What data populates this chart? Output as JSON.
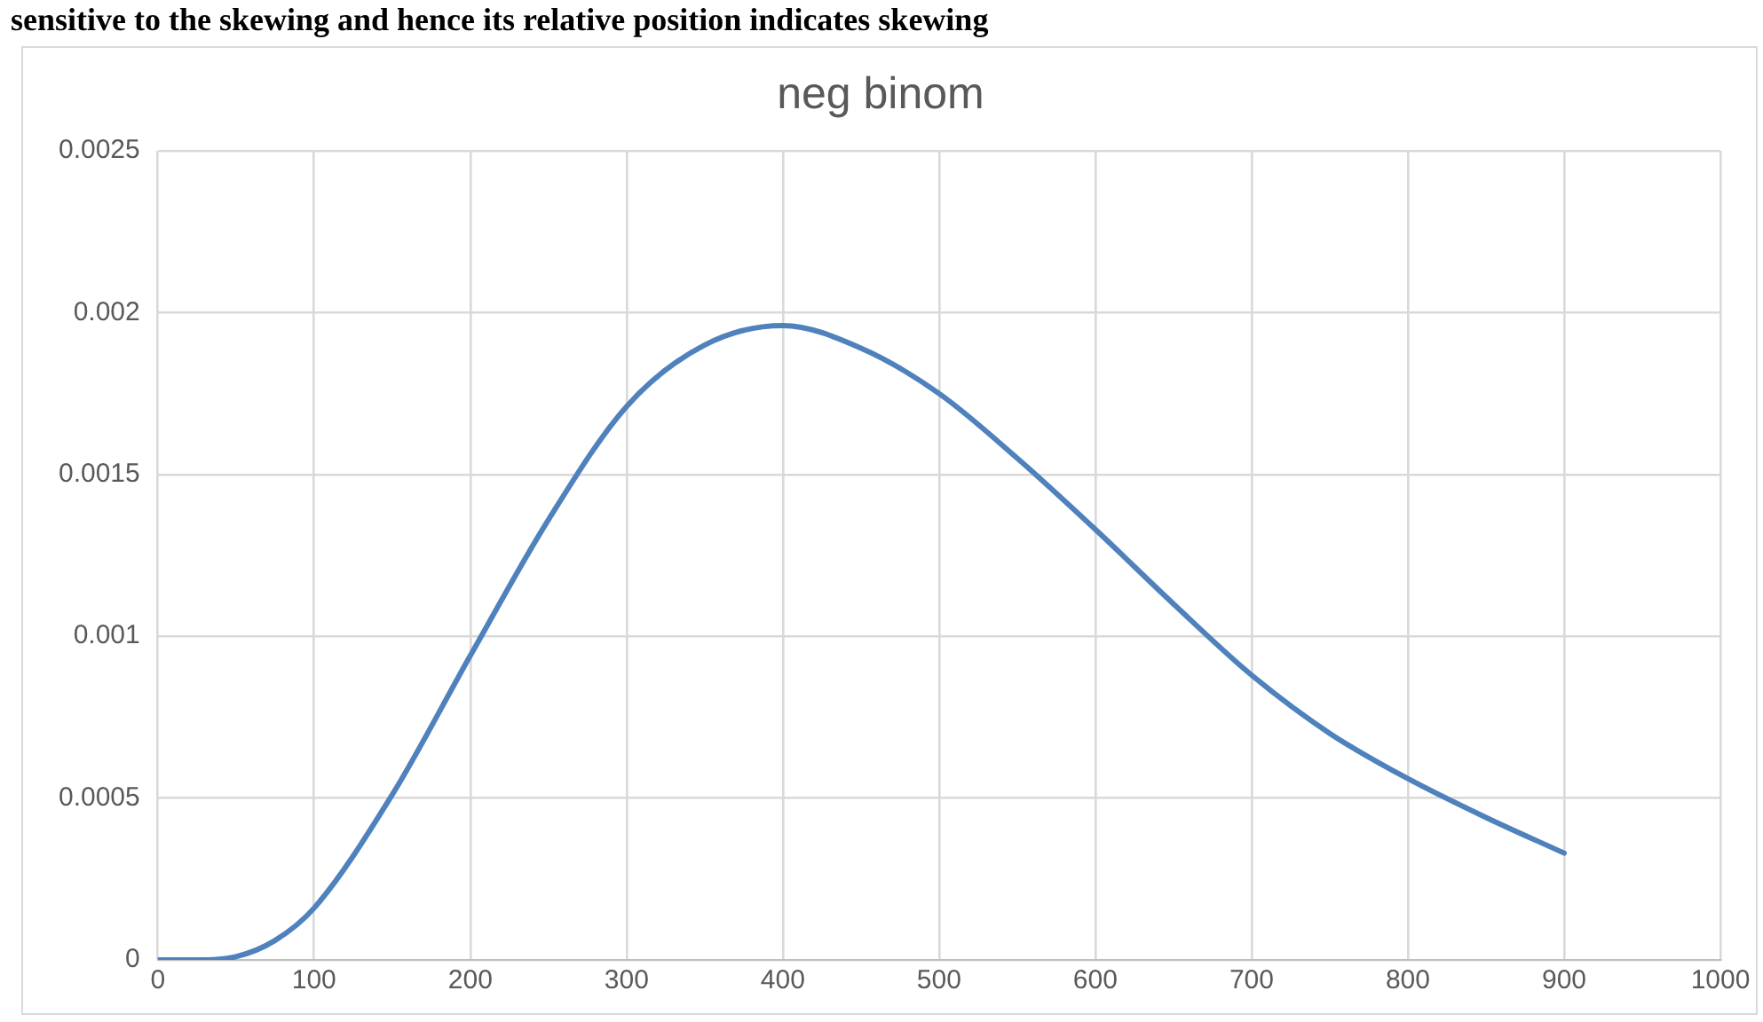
{
  "chart_data": {
    "type": "line",
    "title": "neg binom",
    "annotations": [
      "sensitive to the skewing and hence its relative position indicates skewing"
    ],
    "x": [
      0,
      25,
      50,
      75,
      100,
      150,
      200,
      250,
      300,
      350,
      400,
      450,
      500,
      550,
      600,
      650,
      700,
      750,
      800,
      850,
      900
    ],
    "series": [
      {
        "color": "#4f81bd",
        "values": [
          0,
          0,
          1e-05,
          6e-05,
          0.00016,
          0.00051,
          0.00094,
          0.00136,
          0.00171,
          0.0019,
          0.00196,
          0.00189,
          0.00175,
          0.00155,
          0.00133,
          0.0011,
          0.00088,
          0.0007,
          0.00056,
          0.00044,
          0.00033
        ]
      }
    ],
    "xlim": [
      0,
      1000
    ],
    "xticks": [
      0,
      100,
      200,
      300,
      400,
      500,
      600,
      700,
      800,
      900,
      1000
    ],
    "ylim": [
      0,
      0.0025
    ],
    "yticks": [
      0,
      0.0005,
      0.001,
      0.0015,
      0.002,
      0.0025
    ],
    "grid": true,
    "legend": false,
    "marker": "none",
    "line_style": "solid"
  }
}
